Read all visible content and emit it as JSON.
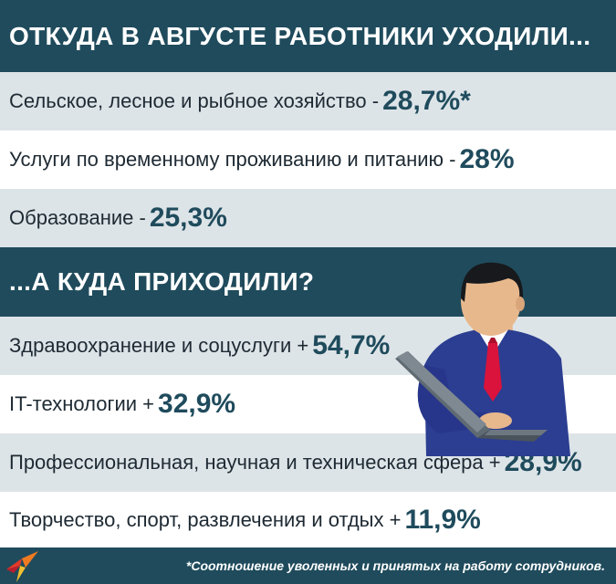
{
  "header_top": {
    "title": "ОТКУДА В АВГУСТЕ РАБОТНИКИ УХОДИЛИ..."
  },
  "left_rows": [
    {
      "label": "Сельское, лесное и рыбное хозяйство -",
      "value": "28,7%*"
    },
    {
      "label": "Услуги по временному проживанию и питанию -",
      "value": "28%"
    },
    {
      "label": "Образование -",
      "value": "25,3%"
    }
  ],
  "header_mid": {
    "title": "...А КУДА ПРИХОДИЛИ?"
  },
  "came_rows": [
    {
      "label": "Здравоохранение и соцуслуги +",
      "value": "54,7%"
    },
    {
      "label": "IT-технологии +",
      "value": "32,9%"
    },
    {
      "label": "Профессиональная, научная и техническая сфера +",
      "value": "28,9%"
    },
    {
      "label": "Творчество, спорт, развлечения и отдых +",
      "value": "11,9%"
    }
  ],
  "footer": {
    "note": "*Соотношение уволенных и принятых на работу сотрудников."
  },
  "colors": {
    "header_bg": "#1f4b5c",
    "row_gray": "#dde4e8",
    "value_text": "#1f4b5c",
    "logo_red": "#e23a2a",
    "tie": "#d9133b"
  },
  "icons": {
    "logo": "kp-logo-icon",
    "illustration": "man-with-laptop-illustration"
  }
}
